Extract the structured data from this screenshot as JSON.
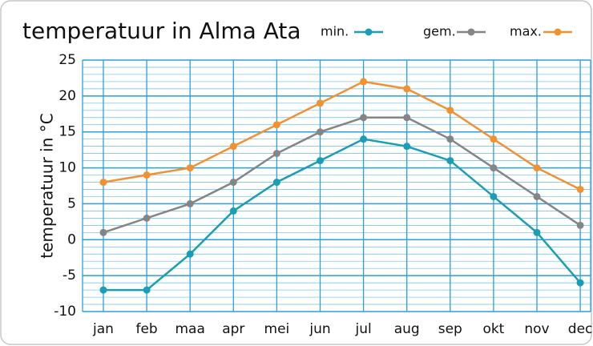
{
  "chart_data": {
    "type": "line",
    "title": "temperatuur in Alma Ata",
    "y_label": "temperatuur in °C",
    "categories": [
      "jan",
      "feb",
      "maa",
      "apr",
      "mei",
      "jun",
      "jul",
      "aug",
      "sep",
      "okt",
      "nov",
      "dec"
    ],
    "series": [
      {
        "name": "min.",
        "color": "#1b9db4",
        "values": [
          -7,
          -7,
          -2,
          4,
          8,
          11,
          14,
          13,
          11,
          6,
          1,
          -6
        ]
      },
      {
        "name": "gem.",
        "color": "#858585",
        "values": [
          1,
          3,
          5,
          8,
          12,
          15,
          17,
          17,
          14,
          10,
          6,
          2
        ]
      },
      {
        "name": "max.",
        "color": "#f29130",
        "values": [
          8,
          9,
          10,
          13,
          16,
          19,
          22,
          21,
          18,
          14,
          10,
          7
        ]
      }
    ],
    "ylim": [
      -10,
      25
    ],
    "yticks": [
      -10,
      -5,
      0,
      5,
      10,
      15,
      20,
      25
    ],
    "grid": true,
    "legend": "top-right"
  }
}
